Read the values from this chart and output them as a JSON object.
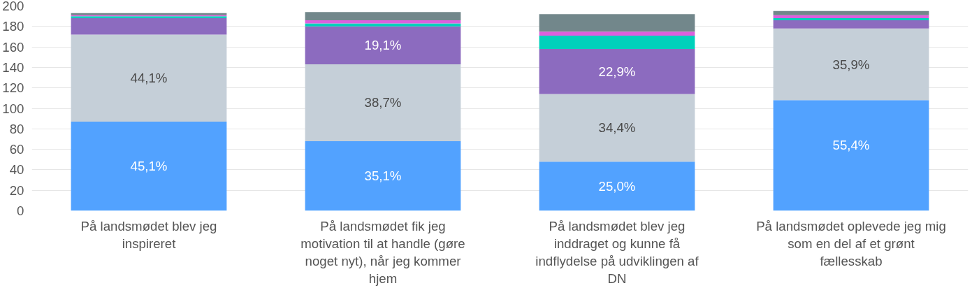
{
  "chart_data": {
    "type": "bar",
    "stacked": true,
    "grid": "y",
    "ylim": [
      0,
      200
    ],
    "yticks": [
      0,
      20,
      40,
      60,
      80,
      100,
      120,
      140,
      160,
      180,
      200
    ],
    "categories": [
      "På landsmødet blev jeg inspireret",
      "På landsmødet fik jeg motivation til at handle (gøre noget nyt), når jeg kommer hjem",
      "På landsmødet blev jeg inddraget og kunne få indflydelse på udviklingen af DN",
      "På landsmødet oplevede jeg mig som en del af et grønt fællesskab"
    ],
    "series": [
      {
        "color": "#52a2ff",
        "values": [
          87,
          68,
          48,
          108
        ]
      },
      {
        "color": "#c5cfd8",
        "values": [
          85,
          75,
          66,
          70
        ]
      },
      {
        "color": "#8c6bbf",
        "values": [
          16,
          37,
          44,
          8
        ]
      },
      {
        "color": "#00d1bb",
        "values": [
          2,
          3,
          13,
          2
        ]
      },
      {
        "color": "#dd5fdd",
        "values": [
          1,
          3,
          4,
          3
        ]
      },
      {
        "color": "#72878b",
        "values": [
          2,
          8,
          17,
          4
        ]
      }
    ],
    "annotations": [
      {
        "text": "45,1%",
        "x": "På landsmødet blev jeg inspireret",
        "y": 87
      },
      {
        "text": "44,1%",
        "x": "På landsmødet blev jeg inspireret",
        "y": 172
      },
      {
        "text": "35,1%",
        "x": "På landsmødet fik jeg motivation til at handle (gøre noget nyt), når jeg kommer hjem",
        "y": 68
      },
      {
        "text": "38,7%",
        "x": "På landsmødet fik jeg motivation til at handle (gøre noget nyt), når jeg kommer hjem",
        "y": 143
      },
      {
        "text": "19,1%",
        "x": "På landsmødet fik jeg motivation til at handle (gøre noget nyt), når jeg kommer hjem",
        "y": 180
      },
      {
        "text": "25,0%",
        "x": "På landsmødet blev jeg inddraget og kunne få indflydelse på udviklingen af DN",
        "y": 48
      },
      {
        "text": "34,4%",
        "x": "På landsmødet blev jeg inddraget og kunne få indflydelse på udviklingen af DN",
        "y": 114
      },
      {
        "text": "22,9%",
        "x": "På landsmødet blev jeg inddraget og kunne få indflydelse på udviklingen af DN",
        "y": 158
      },
      {
        "text": "55,4%",
        "x": "På landsmødet oplevede jeg mig som en del af et grønt fællesskab",
        "y": 108
      },
      {
        "text": "35,9%",
        "x": "På landsmødet oplevede jeg mig som en del af et grønt fællesskab",
        "y": 178
      }
    ]
  }
}
